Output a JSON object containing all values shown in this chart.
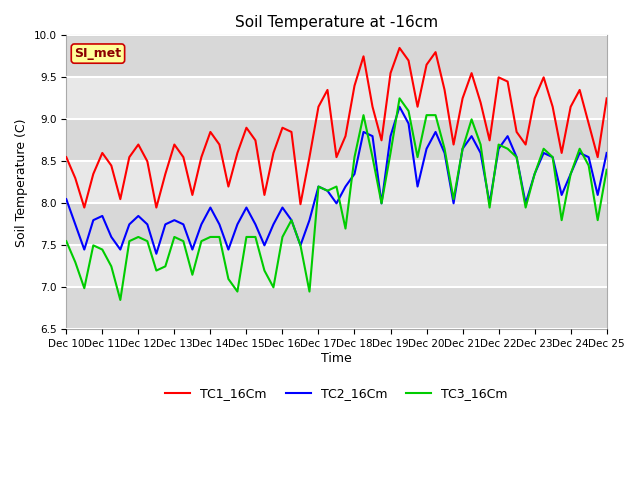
{
  "title": "Soil Temperature at -16cm",
  "xlabel": "Time",
  "ylabel": "Soil Temperature (C)",
  "ylim": [
    6.5,
    10.0
  ],
  "xlim": [
    0,
    15
  ],
  "background_color": "#ffffff",
  "plot_bg_color": "#e8e8e8",
  "grid_color": "#ffffff",
  "band_colors": [
    "#e0e0e0",
    "#d0d0d0"
  ],
  "annotation_text": "SI_met",
  "annotation_bg": "#ffff99",
  "annotation_border": "#cc0000",
  "annotation_text_color": "#8b0000",
  "line_colors": [
    "#ff0000",
    "#0000ff",
    "#00cc00"
  ],
  "line_labels": [
    "TC1_16Cm",
    "TC2_16Cm",
    "TC3_16Cm"
  ],
  "x_tick_labels": [
    "Dec 10",
    "Dec 11",
    "Dec 12",
    "Dec 13",
    "Dec 14",
    "Dec 15",
    "Dec 16",
    "Dec 17",
    "Dec 18",
    "Dec 19",
    "Dec 20",
    "Dec 21",
    "Dec 22",
    "Dec 23",
    "Dec 24",
    "Dec 25"
  ],
  "legend_loc": "lower center",
  "title_fontsize": 11,
  "axis_label_fontsize": 9,
  "tick_fontsize": 7.5,
  "legend_fontsize": 9,
  "figsize": [
    6.4,
    4.8
  ],
  "dpi": 100,
  "TC1_x": [
    0,
    0.25,
    0.5,
    0.75,
    1.0,
    1.25,
    1.5,
    1.75,
    2.0,
    2.25,
    2.5,
    2.75,
    3.0,
    3.25,
    3.5,
    3.75,
    4.0,
    4.25,
    4.5,
    4.75,
    5.0,
    5.25,
    5.5,
    5.75,
    6.0,
    6.25,
    6.5,
    6.75,
    7.0,
    7.25,
    7.5,
    7.75,
    8.0,
    8.25,
    8.5,
    8.75,
    9.0,
    9.25,
    9.5,
    9.75,
    10.0,
    10.25,
    10.5,
    10.75,
    11.0,
    11.25,
    11.5,
    11.75,
    12.0,
    12.25,
    12.5,
    12.75,
    13.0,
    13.25,
    13.5,
    13.75,
    14.0,
    14.25,
    14.5,
    14.75,
    15.0
  ],
  "TC1_y": [
    8.55,
    8.3,
    7.95,
    8.35,
    8.6,
    8.45,
    8.05,
    8.55,
    8.7,
    8.5,
    7.95,
    8.35,
    8.7,
    8.55,
    8.1,
    8.55,
    8.85,
    8.7,
    8.2,
    8.6,
    8.9,
    8.75,
    8.1,
    8.6,
    8.9,
    8.85,
    7.99,
    8.55,
    9.15,
    9.35,
    8.55,
    8.8,
    9.4,
    9.75,
    9.15,
    8.75,
    9.55,
    9.85,
    9.7,
    9.15,
    9.65,
    9.8,
    9.35,
    8.7,
    9.25,
    9.55,
    9.2,
    8.75,
    9.5,
    9.45,
    8.85,
    8.7,
    9.25,
    9.5,
    9.15,
    8.6,
    9.15,
    9.35,
    8.95,
    8.55,
    9.25
  ],
  "TC2_x": [
    0,
    0.25,
    0.5,
    0.75,
    1.0,
    1.25,
    1.5,
    1.75,
    2.0,
    2.25,
    2.5,
    2.75,
    3.0,
    3.25,
    3.5,
    3.75,
    4.0,
    4.25,
    4.5,
    4.75,
    5.0,
    5.25,
    5.5,
    5.75,
    6.0,
    6.25,
    6.5,
    6.75,
    7.0,
    7.25,
    7.5,
    7.75,
    8.0,
    8.25,
    8.5,
    8.75,
    9.0,
    9.25,
    9.5,
    9.75,
    10.0,
    10.25,
    10.5,
    10.75,
    11.0,
    11.25,
    11.5,
    11.75,
    12.0,
    12.25,
    12.5,
    12.75,
    13.0,
    13.25,
    13.5,
    13.75,
    14.0,
    14.25,
    14.5,
    14.75,
    15.0
  ],
  "TC2_y": [
    8.05,
    7.75,
    7.45,
    7.8,
    7.85,
    7.6,
    7.45,
    7.75,
    7.85,
    7.75,
    7.4,
    7.75,
    7.8,
    7.75,
    7.45,
    7.75,
    7.95,
    7.75,
    7.45,
    7.75,
    7.95,
    7.75,
    7.5,
    7.75,
    7.95,
    7.8,
    7.5,
    7.8,
    8.2,
    8.15,
    8.0,
    8.2,
    8.35,
    8.85,
    8.8,
    8.0,
    8.8,
    9.15,
    8.95,
    8.2,
    8.65,
    8.85,
    8.6,
    8.0,
    8.65,
    8.8,
    8.6,
    8.0,
    8.65,
    8.8,
    8.55,
    8.0,
    8.35,
    8.6,
    8.55,
    8.1,
    8.35,
    8.6,
    8.55,
    8.1,
    8.6
  ],
  "TC3_x": [
    0,
    0.25,
    0.5,
    0.75,
    1.0,
    1.25,
    1.5,
    1.75,
    2.0,
    2.25,
    2.5,
    2.75,
    3.0,
    3.25,
    3.5,
    3.75,
    4.0,
    4.25,
    4.5,
    4.75,
    5.0,
    5.25,
    5.5,
    5.75,
    6.0,
    6.25,
    6.5,
    6.75,
    7.0,
    7.25,
    7.5,
    7.75,
    8.0,
    8.25,
    8.5,
    8.75,
    9.0,
    9.25,
    9.5,
    9.75,
    10.0,
    10.25,
    10.5,
    10.75,
    11.0,
    11.25,
    11.5,
    11.75,
    12.0,
    12.25,
    12.5,
    12.75,
    13.0,
    13.25,
    13.5,
    13.75,
    14.0,
    14.25,
    14.5,
    14.75,
    15.0
  ],
  "TC3_y": [
    7.55,
    7.3,
    6.99,
    7.5,
    7.45,
    7.25,
    6.85,
    7.55,
    7.6,
    7.55,
    7.2,
    7.25,
    7.6,
    7.55,
    7.15,
    7.55,
    7.6,
    7.6,
    7.1,
    6.95,
    7.6,
    7.6,
    7.2,
    7.0,
    7.6,
    7.8,
    7.5,
    6.95,
    8.2,
    8.15,
    8.2,
    7.7,
    8.55,
    9.05,
    8.55,
    8.0,
    8.6,
    9.25,
    9.1,
    8.55,
    9.05,
    9.05,
    8.65,
    8.05,
    8.65,
    9.0,
    8.7,
    7.95,
    8.7,
    8.65,
    8.55,
    7.95,
    8.35,
    8.65,
    8.55,
    7.8,
    8.35,
    8.65,
    8.45,
    7.8,
    8.4
  ]
}
